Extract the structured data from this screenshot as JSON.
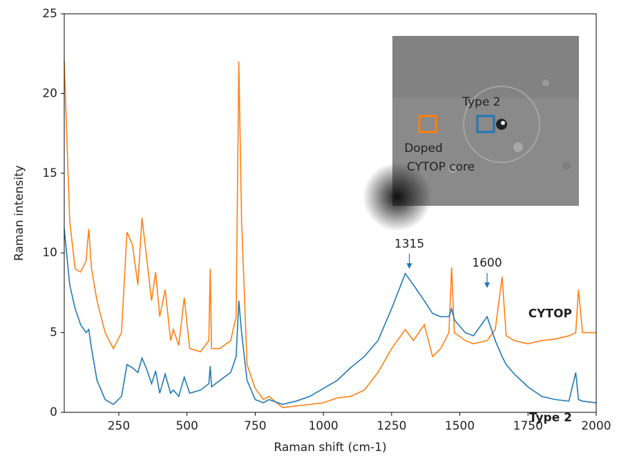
{
  "chart_data": {
    "type": "line",
    "xlabel": "Raman shift (cm-1)",
    "ylabel": "Raman intensity",
    "xlim": [
      50,
      2000
    ],
    "ylim": [
      0,
      25
    ],
    "xticks": [
      250,
      500,
      750,
      1000,
      1250,
      1500,
      1750,
      2000
    ],
    "yticks": [
      0,
      5,
      10,
      15,
      20,
      25
    ],
    "x": [
      50,
      70,
      90,
      110,
      130,
      140,
      150,
      170,
      200,
      230,
      260,
      280,
      300,
      320,
      335,
      350,
      370,
      385,
      400,
      420,
      440,
      450,
      470,
      490,
      510,
      550,
      580,
      585,
      590,
      620,
      660,
      680,
      690,
      700,
      720,
      750,
      780,
      800,
      850,
      900,
      950,
      1000,
      1050,
      1100,
      1150,
      1200,
      1250,
      1300,
      1330,
      1370,
      1400,
      1430,
      1460,
      1470,
      1480,
      1520,
      1550,
      1600,
      1630,
      1655,
      1670,
      1700,
      1750,
      1800,
      1850,
      1900,
      1925,
      1935,
      1950,
      2000
    ],
    "series": [
      {
        "name": "CYTOP",
        "color": "#ff7f0e",
        "values": [
          22,
          12,
          9,
          8.8,
          9.5,
          11.5,
          9,
          7,
          5,
          4,
          5,
          11.3,
          10.5,
          8,
          12.2,
          10,
          7,
          8.8,
          6,
          7.7,
          4.5,
          5.2,
          4.2,
          7.2,
          4,
          3.8,
          4.5,
          9,
          4,
          4,
          4.5,
          6,
          22,
          12,
          3,
          1.5,
          0.8,
          1,
          0.3,
          0.4,
          0.5,
          0.6,
          0.9,
          1,
          1.4,
          2.5,
          4,
          5.2,
          4.5,
          5.5,
          3.5,
          4,
          5,
          9.1,
          5,
          4.5,
          4.3,
          4.5,
          5.2,
          8.5,
          4.8,
          4.5,
          4.3,
          4.5,
          4.6,
          4.8,
          5,
          7.7,
          5,
          5
        ]
      },
      {
        "name": "Type 2",
        "color": "#1f77b4",
        "values": [
          11.5,
          8,
          6.5,
          5.5,
          5,
          5.2,
          4,
          2,
          0.8,
          0.5,
          1,
          3,
          2.8,
          2.5,
          3.4,
          2.8,
          1.8,
          2.6,
          1.2,
          2.4,
          1.2,
          1.4,
          1,
          2.2,
          1.2,
          1.4,
          1.8,
          2.9,
          1.6,
          2,
          2.5,
          3.5,
          7,
          5,
          2,
          0.8,
          0.6,
          0.8,
          0.5,
          0.7,
          1,
          1.5,
          2,
          2.8,
          3.5,
          4.5,
          6.5,
          8.7,
          8,
          7,
          6.2,
          6,
          6,
          6.5,
          5.8,
          5,
          4.8,
          6,
          4.5,
          3.5,
          3,
          2.4,
          1.6,
          1,
          0.8,
          0.7,
          2.5,
          0.8,
          0.7,
          0.6
        ]
      }
    ],
    "annotations": [
      {
        "label": "1315",
        "x": 1315,
        "y": 9
      },
      {
        "label": "1600",
        "x": 1600,
        "y": 7.8
      }
    ],
    "inset_labels": [
      "Type 2",
      "Doped",
      "CYTOP core"
    ]
  }
}
